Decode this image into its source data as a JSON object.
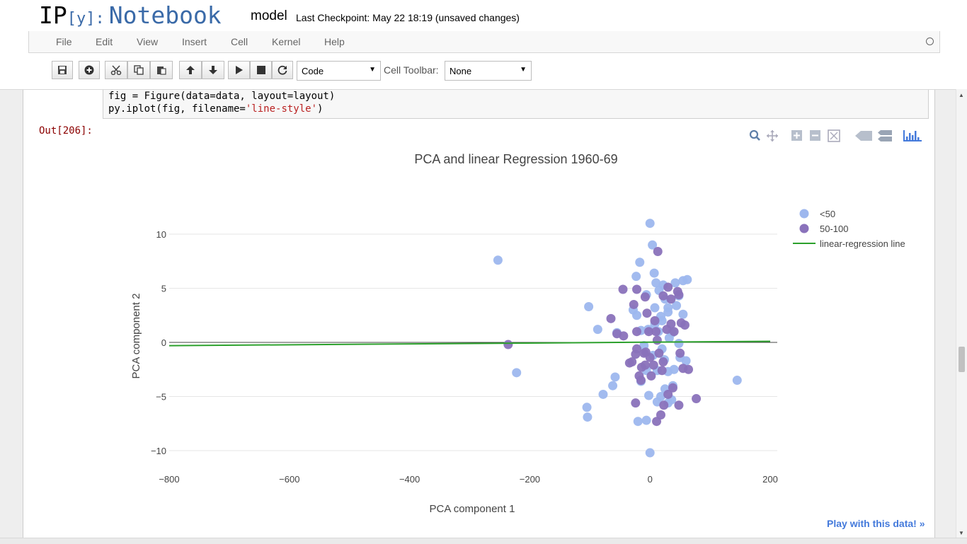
{
  "header": {
    "logo_ip": "IP",
    "logo_y": "[y]:",
    "logo_notebook": "Notebook",
    "notebook_name": "model",
    "checkpoint": "Last Checkpoint: May 22 18:19 (unsaved changes)"
  },
  "menu": [
    "File",
    "Edit",
    "View",
    "Insert",
    "Cell",
    "Kernel",
    "Help"
  ],
  "toolbar": {
    "buttons": [
      "save-icon",
      "plus-icon",
      "cut-icon",
      "copy-icon",
      "paste-icon",
      "arrow-up-icon",
      "arrow-down-icon",
      "play-icon",
      "stop-icon",
      "restart-icon"
    ],
    "cell_type": "Code",
    "cell_toolbar_label": "Cell Toolbar:",
    "cell_toolbar_value": "None"
  },
  "cell": {
    "code_line1": "fig = Figure(data=data, layout=layout)",
    "code_line2_prefix": "py.iplot(fig, filename=",
    "code_line2_string": "'line-style'",
    "code_line2_suffix": ")",
    "out_prompt": "Out[206]:"
  },
  "plot": {
    "modebar": [
      "zoom-icon",
      "pan-icon",
      "zoom-in-icon",
      "zoom-out-icon",
      "autoscale-icon",
      "hover-closest-icon",
      "hover-compare-icon",
      "plotly-logo-icon"
    ],
    "play_link": "Play with this data! »",
    "colors": {
      "lt50": "#9db7ee",
      "50to100": "#8a72bb",
      "line": "#2ca02c"
    }
  },
  "chart_data": {
    "type": "scatter",
    "title": "PCA and linear Regression 1960-69",
    "xlabel": "PCA component 1",
    "ylabel": "PCA component 2",
    "xlim": [
      -800,
      200
    ],
    "ylim": [
      -11,
      12
    ],
    "xticks": [
      "−800",
      "−600",
      "−400",
      "−200",
      "0",
      "200"
    ],
    "xtick_values": [
      -800,
      -600,
      -400,
      -200,
      0,
      200
    ],
    "yticks": [
      "10",
      "5",
      "0",
      "−5",
      "−10"
    ],
    "ytick_values": [
      10,
      5,
      0,
      -5,
      -10
    ],
    "grid": true,
    "legend_position": "top-right",
    "series": [
      {
        "name": "<50",
        "color": "#9db7ee",
        "points": [
          [
            -253,
            7.6
          ],
          [
            -222,
            -2.8
          ],
          [
            -102,
            3.3
          ],
          [
            -105,
            -6.0
          ],
          [
            -104,
            -6.9
          ],
          [
            -87,
            1.2
          ],
          [
            -78,
            -4.8
          ],
          [
            -62,
            -4.0
          ],
          [
            -58,
            -3.2
          ],
          [
            -55,
            0.9
          ],
          [
            -20,
            -7.3
          ],
          [
            -17,
            7.4
          ],
          [
            -15,
            -3.6
          ],
          [
            0,
            11.0
          ],
          [
            4,
            9.0
          ],
          [
            7,
            6.4
          ],
          [
            10,
            5.5
          ],
          [
            15,
            4.8
          ],
          [
            22,
            5.3
          ],
          [
            25,
            4.0
          ],
          [
            30,
            3.2
          ],
          [
            42,
            5.5
          ],
          [
            55,
            5.7
          ],
          [
            62,
            5.8
          ],
          [
            44,
            3.4
          ],
          [
            48,
            4.3
          ],
          [
            30,
            2.8
          ],
          [
            18,
            2.4
          ],
          [
            8,
            3.2
          ],
          [
            -3,
            1.2
          ],
          [
            -10,
            -0.3
          ],
          [
            -6,
            -2.6
          ],
          [
            5,
            -1.2
          ],
          [
            20,
            -0.6
          ],
          [
            32,
            0.4
          ],
          [
            37,
            0.9
          ],
          [
            48,
            -0.1
          ],
          [
            50,
            -1.4
          ],
          [
            60,
            -1.7
          ],
          [
            30,
            -2.7
          ],
          [
            25,
            -4.3
          ],
          [
            18,
            -5.0
          ],
          [
            -2,
            -4.9
          ],
          [
            12,
            -5.5
          ],
          [
            30,
            -5.6
          ],
          [
            36,
            -5.3
          ],
          [
            0,
            -10.2
          ],
          [
            -6,
            -7.2
          ],
          [
            -23,
            6.1
          ],
          [
            -22,
            2.5
          ],
          [
            -28,
            3.0
          ],
          [
            -6,
            4.4
          ],
          [
            14,
            1.0
          ],
          [
            24,
            -1.6
          ],
          [
            40,
            -2.5
          ],
          [
            145,
            -3.5
          ],
          [
            55,
            2.6
          ],
          [
            8,
            1.7
          ],
          [
            -15,
            1.1
          ],
          [
            38,
            -4.0
          ],
          [
            20,
            2.0
          ],
          [
            12,
            -2.6
          ]
        ]
      },
      {
        "name": "50-100",
        "color": "#8a72bb",
        "points": [
          [
            -236,
            -0.2
          ],
          [
            13,
            8.4
          ],
          [
            -45,
            4.9
          ],
          [
            -22,
            4.9
          ],
          [
            -8,
            4.2
          ],
          [
            -27,
            3.5
          ],
          [
            -55,
            0.8
          ],
          [
            -65,
            2.2
          ],
          [
            -44,
            0.6
          ],
          [
            -5,
            2.7
          ],
          [
            8,
            2.0
          ],
          [
            22,
            4.3
          ],
          [
            30,
            5.1
          ],
          [
            35,
            4.0
          ],
          [
            46,
            4.7
          ],
          [
            48,
            4.4
          ],
          [
            52,
            1.8
          ],
          [
            58,
            1.6
          ],
          [
            35,
            1.7
          ],
          [
            28,
            1.2
          ],
          [
            10,
            1.0
          ],
          [
            -2,
            1.0
          ],
          [
            -22,
            1.0
          ],
          [
            -7,
            -0.9
          ],
          [
            -10,
            -1.0
          ],
          [
            -22,
            -0.6
          ],
          [
            -24,
            -1.1
          ],
          [
            0,
            -1.4
          ],
          [
            15,
            -1.0
          ],
          [
            22,
            -1.8
          ],
          [
            6,
            -2.1
          ],
          [
            -8,
            -2.1
          ],
          [
            -14,
            -2.3
          ],
          [
            -30,
            -1.8
          ],
          [
            -34,
            -1.9
          ],
          [
            -18,
            -3.1
          ],
          [
            -15,
            -3.5
          ],
          [
            2,
            -3.1
          ],
          [
            20,
            -2.6
          ],
          [
            50,
            -1.0
          ],
          [
            55,
            -2.4
          ],
          [
            64,
            -2.5
          ],
          [
            38,
            -4.2
          ],
          [
            30,
            -4.8
          ],
          [
            23,
            -5.8
          ],
          [
            18,
            -6.7
          ],
          [
            -24,
            -5.6
          ],
          [
            11,
            -7.3
          ],
          [
            77,
            -5.2
          ],
          [
            48,
            -5.8
          ],
          [
            40,
            1.0
          ],
          [
            12,
            0.2
          ]
        ]
      },
      {
        "name": "linear-regression line",
        "color": "#2ca02c",
        "mode": "line",
        "points": [
          [
            -800,
            -0.3
          ],
          [
            200,
            0.1
          ]
        ]
      }
    ]
  }
}
